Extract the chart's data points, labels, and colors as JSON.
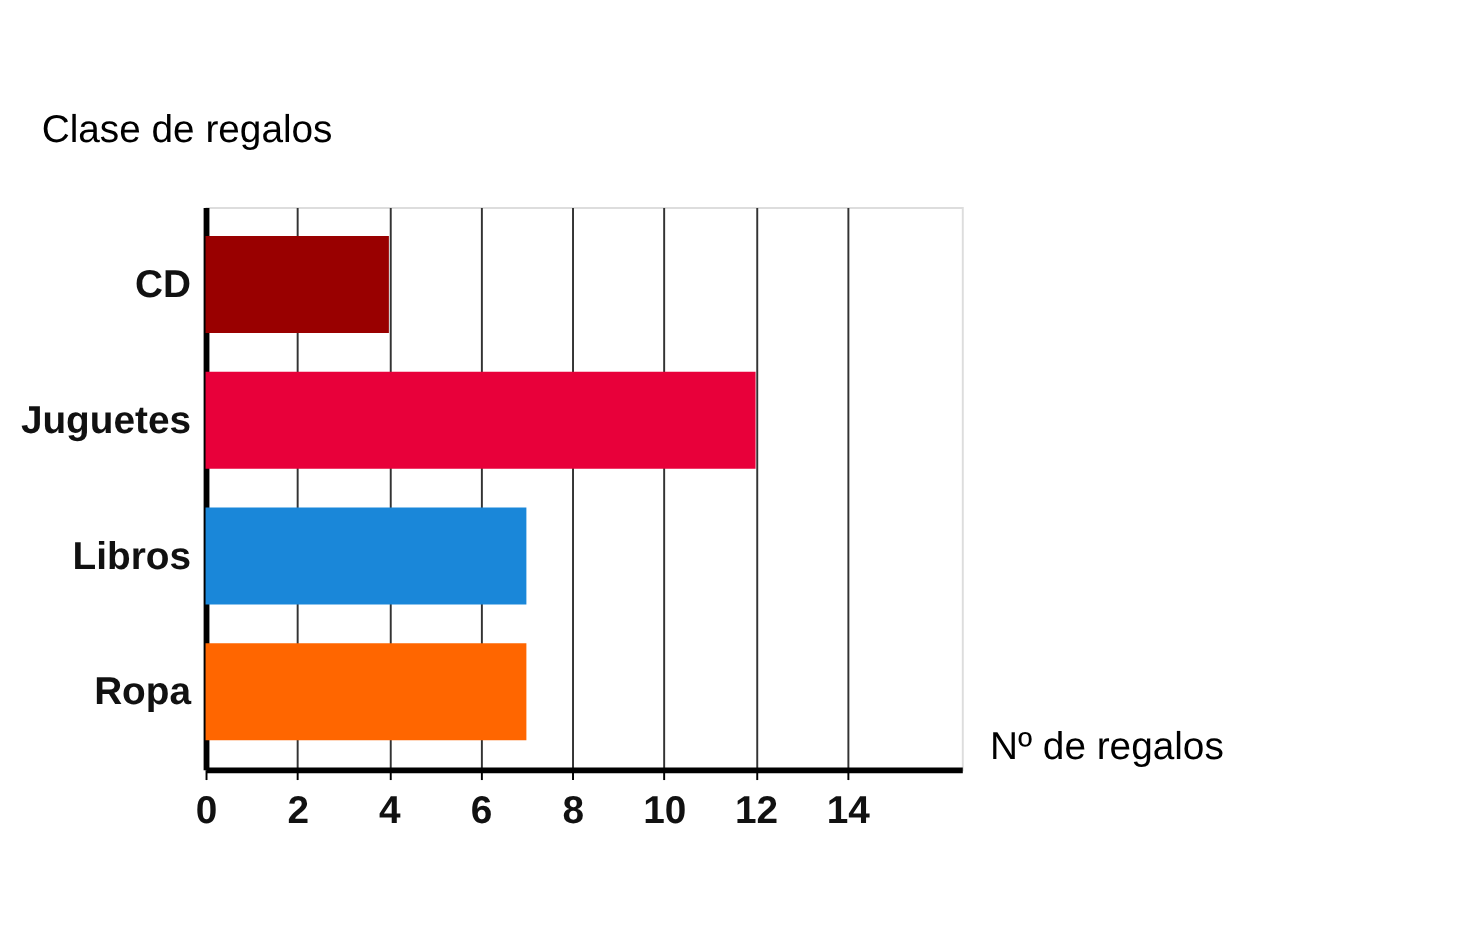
{
  "chart_data": {
    "type": "bar",
    "orientation": "horizontal",
    "xlabel": "Nº de regalos",
    "ylabel": "Clase de regalos",
    "categories": [
      "CD",
      "Juguetes",
      "Libros",
      "Ropa"
    ],
    "values": [
      4,
      12,
      7,
      7
    ],
    "colors": [
      "#990000",
      "#e8003a",
      "#1a87d9",
      "#ff6600"
    ],
    "xlim": [
      0,
      16.5
    ],
    "xticks": [
      0,
      2,
      4,
      6,
      8,
      10,
      12,
      14
    ],
    "grid": "x"
  }
}
